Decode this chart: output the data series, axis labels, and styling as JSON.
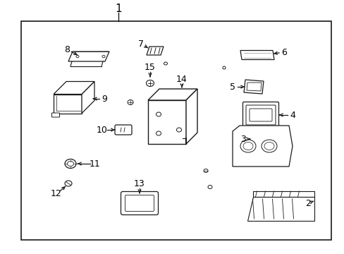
{
  "background_color": "#ffffff",
  "border_color": "#000000",
  "line_color": "#1a1a1a",
  "text_color": "#000000",
  "fig_width": 4.89,
  "fig_height": 3.6,
  "dpi": 100
}
